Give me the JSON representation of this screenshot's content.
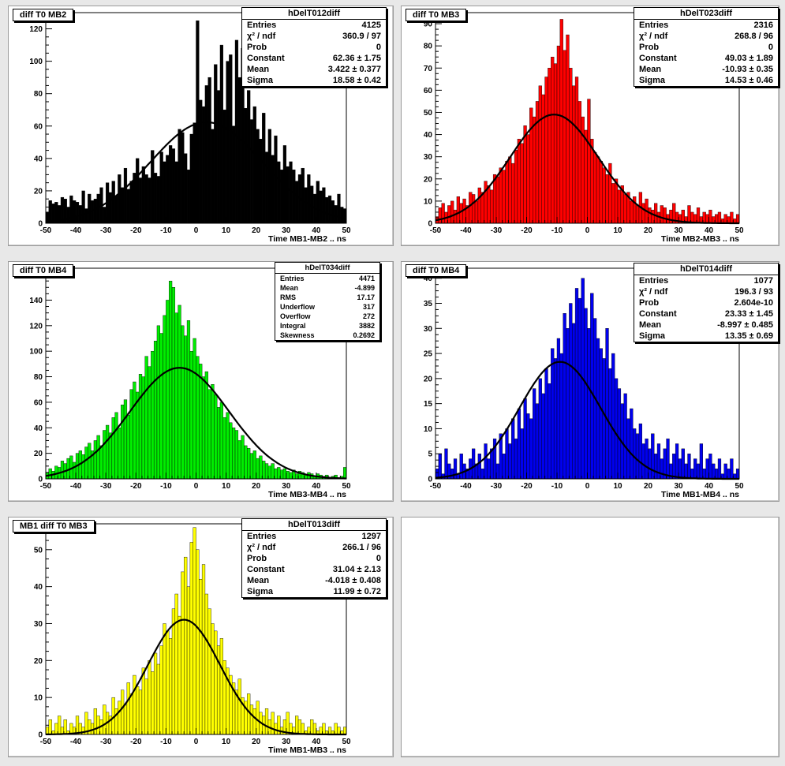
{
  "pads": [
    {
      "title": "diff T0 MB2",
      "fill": "#000000",
      "stats": {
        "name": "hDelT012diff",
        "rows": [
          [
            "Entries",
            "4125"
          ],
          [
            "χ² / ndf",
            "360.9 / 97"
          ],
          [
            "Prob",
            "0"
          ],
          [
            "Constant",
            "62.36 ± 1.75"
          ],
          [
            "Mean",
            "3.422 ± 0.377"
          ],
          [
            "Sigma",
            "18.58 ± 0.42"
          ]
        ]
      },
      "chart_data": {
        "type": "bar",
        "title": "diff T0 MB2",
        "xlabel": "Time MB1-MB2  ..  ns",
        "xlim": [
          -50,
          50
        ],
        "ylim": [
          0,
          130
        ],
        "yticks": [
          0,
          20,
          40,
          60,
          80,
          100,
          120
        ],
        "xticks": [
          -50,
          -40,
          -30,
          -20,
          -10,
          0,
          10,
          20,
          30,
          40,
          50
        ],
        "fit": {
          "constant": 62.36,
          "mean": 3.422,
          "sigma": 18.58
        },
        "bin_width": 1,
        "values": [
          7,
          14,
          12,
          13,
          11,
          16,
          15,
          10,
          17,
          14,
          13,
          11,
          20,
          9,
          18,
          14,
          15,
          18,
          22,
          10,
          25,
          19,
          26,
          17,
          30,
          22,
          34,
          21,
          26,
          31,
          40,
          28,
          35,
          30,
          28,
          45,
          31,
          29,
          44,
          38,
          42,
          48,
          46,
          38,
          58,
          56,
          43,
          33,
          55,
          62,
          125,
          76,
          72,
          85,
          90,
          58,
          98,
          82,
          110,
          70,
          100,
          104,
          60,
          113,
          90,
          108,
          71,
          82,
          64,
          72,
          58,
          52,
          68,
          44,
          58,
          42,
          54,
          38,
          33,
          48,
          35,
          38,
          33,
          26,
          30,
          34,
          22,
          30,
          23,
          18,
          26,
          20,
          22,
          16,
          17,
          14,
          11,
          18,
          10,
          9
        ]
      }
    },
    {
      "title": "diff T0 MB3",
      "fill": "#ff0000",
      "stats": {
        "name": "hDelT023diff",
        "rows": [
          [
            "Entries",
            "2316"
          ],
          [
            "χ² / ndf",
            "268.8 / 96"
          ],
          [
            "Prob",
            "0"
          ],
          [
            "Constant",
            "49.03 ± 1.89"
          ],
          [
            "Mean",
            "-10.93 ± 0.35"
          ],
          [
            "Sigma",
            "14.53 ± 0.46"
          ]
        ]
      },
      "chart_data": {
        "type": "bar",
        "title": "diff T0 MB3",
        "xlabel": "Time MB2-MB3  ..  ns",
        "xlim": [
          -50,
          50
        ],
        "ylim": [
          0,
          95
        ],
        "yticks": [
          0,
          10,
          20,
          30,
          40,
          50,
          60,
          70,
          80,
          90
        ],
        "xticks": [
          -50,
          -40,
          -30,
          -20,
          -10,
          0,
          10,
          20,
          30,
          40,
          50
        ],
        "fit": {
          "constant": 49.03,
          "mean": -10.93,
          "sigma": 14.53
        },
        "bin_width": 1,
        "values": [
          3,
          7,
          9,
          5,
          8,
          10,
          6,
          12,
          9,
          11,
          8,
          14,
          13,
          10,
          16,
          14,
          19,
          17,
          15,
          22,
          21,
          25,
          24,
          28,
          30,
          27,
          33,
          38,
          36,
          44,
          40,
          52,
          48,
          55,
          62,
          58,
          66,
          70,
          75,
          72,
          80,
          92,
          78,
          85,
          70,
          62,
          66,
          55,
          48,
          42,
          56,
          38,
          32,
          30,
          28,
          25,
          22,
          27,
          18,
          20,
          15,
          17,
          13,
          14,
          10,
          12,
          8,
          14,
          9,
          11,
          7,
          6,
          9,
          5,
          8,
          7,
          4,
          6,
          9,
          5,
          4,
          6,
          3,
          8,
          5,
          4,
          7,
          3,
          5,
          4,
          6,
          3,
          4,
          5,
          2,
          4,
          3,
          5,
          2,
          4
        ]
      }
    },
    {
      "title": "diff T0 MB4",
      "fill": "#00ee00",
      "stats": {
        "name": "hDelT034diff",
        "rows": [
          [
            "Entries",
            "4471"
          ],
          [
            "Mean",
            "-4.899"
          ],
          [
            "RMS",
            "17.17"
          ],
          [
            "Underflow",
            "317"
          ],
          [
            "Overflow",
            "272"
          ],
          [
            "Integral",
            "3882"
          ],
          [
            "Skewness",
            "0.2692"
          ]
        ]
      },
      "chart_data": {
        "type": "bar",
        "title": "diff T0 MB4",
        "xlabel": "Time MB3-MB4  ..  ns",
        "xlim": [
          -50,
          50
        ],
        "ylim": [
          0,
          165
        ],
        "yticks": [
          0,
          20,
          40,
          60,
          80,
          100,
          120,
          140,
          160
        ],
        "xticks": [
          -50,
          -40,
          -30,
          -20,
          -10,
          0,
          10,
          20,
          30,
          40,
          50
        ],
        "fit": {
          "constant": 87,
          "mean": -5.5,
          "sigma": 16.5
        },
        "bin_width": 1,
        "values": [
          5,
          8,
          6,
          10,
          9,
          14,
          12,
          16,
          18,
          13,
          20,
          22,
          19,
          25,
          28,
          22,
          30,
          34,
          26,
          38,
          42,
          36,
          48,
          52,
          40,
          58,
          62,
          50,
          70,
          76,
          68,
          82,
          80,
          96,
          88,
          100,
          108,
          120,
          114,
          128,
          140,
          155,
          150,
          130,
          136,
          120,
          112,
          124,
          100,
          110,
          96,
          90,
          80,
          84,
          70,
          74,
          66,
          56,
          60,
          48,
          52,
          44,
          40,
          38,
          30,
          34,
          26,
          24,
          20,
          22,
          16,
          18,
          14,
          12,
          10,
          12,
          8,
          9,
          7,
          8,
          6,
          5,
          7,
          4,
          6,
          5,
          3,
          5,
          4,
          2,
          4,
          3,
          2,
          3,
          1,
          2,
          3,
          1,
          2,
          9
        ]
      }
    },
    {
      "title": "diff T0 MB4",
      "fill": "#0000ee",
      "stats": {
        "name": "hDelT014diff",
        "rows": [
          [
            "Entries",
            "1077"
          ],
          [
            "χ² / ndf",
            "196.3 / 93"
          ],
          [
            "Prob",
            "2.604e-10"
          ],
          [
            "Constant",
            "23.33 ± 1.45"
          ],
          [
            "Mean",
            "-8.997 ± 0.485"
          ],
          [
            "Sigma",
            "13.35 ± 0.69"
          ]
        ]
      },
      "chart_data": {
        "type": "bar",
        "title": "diff T0 MB4",
        "xlabel": "Time MB1-MB4  ..  ns",
        "xlim": [
          -50,
          50
        ],
        "ylim": [
          0,
          42
        ],
        "yticks": [
          0,
          5,
          10,
          15,
          20,
          25,
          30,
          35,
          40
        ],
        "xticks": [
          -50,
          -40,
          -30,
          -20,
          -10,
          0,
          10,
          20,
          30,
          40,
          50
        ],
        "fit": {
          "constant": 23.33,
          "mean": -8.997,
          "sigma": 13.35
        },
        "bin_width": 1,
        "values": [
          2,
          5,
          1,
          6,
          3,
          2,
          4,
          1,
          5,
          3,
          2,
          4,
          6,
          3,
          5,
          2,
          7,
          4,
          6,
          8,
          3,
          9,
          5,
          10,
          7,
          12,
          8,
          14,
          10,
          16,
          13,
          12,
          18,
          15,
          20,
          17,
          22,
          19,
          26,
          24,
          28,
          25,
          33,
          30,
          35,
          31,
          38,
          36,
          40,
          34,
          30,
          37,
          32,
          28,
          26,
          24,
          30,
          22,
          25,
          20,
          18,
          15,
          17,
          12,
          14,
          10,
          9,
          11,
          7,
          8,
          6,
          9,
          5,
          7,
          4,
          6,
          8,
          3,
          5,
          7,
          4,
          6,
          3,
          5,
          2,
          4,
          3,
          7,
          2,
          4,
          5,
          3,
          2,
          4,
          1,
          3,
          2,
          4,
          1,
          2
        ]
      }
    },
    {
      "title": "MB1 diff T0 MB3",
      "fill": "#ffff00",
      "stats": {
        "name": "hDelT013diff",
        "rows": [
          [
            "Entries",
            "1297"
          ],
          [
            "χ² / ndf",
            "266.1 / 96"
          ],
          [
            "Prob",
            "0"
          ],
          [
            "Constant",
            "31.04 ± 2.13"
          ],
          [
            "Mean",
            "-4.018 ± 0.408"
          ],
          [
            "Sigma",
            "11.99 ± 0.72"
          ]
        ]
      },
      "chart_data": {
        "type": "bar",
        "title": "MB1 diff T0 MB3",
        "xlabel": "Time MB1-MB3  ..  ns",
        "xlim": [
          -50,
          50
        ],
        "ylim": [
          0,
          57
        ],
        "yticks": [
          0,
          10,
          20,
          30,
          40,
          50
        ],
        "xticks": [
          -50,
          -40,
          -30,
          -20,
          -10,
          0,
          10,
          20,
          30,
          40,
          50
        ],
        "fit": {
          "constant": 31.04,
          "mean": -4.018,
          "sigma": 11.99
        },
        "bin_width": 1,
        "values": [
          2,
          4,
          1,
          3,
          5,
          2,
          4,
          1,
          3,
          2,
          5,
          3,
          2,
          6,
          4,
          3,
          7,
          5,
          4,
          8,
          6,
          5,
          10,
          7,
          9,
          12,
          8,
          14,
          11,
          16,
          13,
          12,
          18,
          15,
          20,
          17,
          22,
          19,
          24,
          30,
          28,
          26,
          34,
          38,
          32,
          44,
          48,
          40,
          52,
          56,
          50,
          42,
          46,
          38,
          34,
          30,
          28,
          24,
          26,
          20,
          18,
          16,
          14,
          12,
          15,
          10,
          9,
          11,
          8,
          7,
          9,
          6,
          5,
          7,
          4,
          6,
          3,
          5,
          2,
          4,
          6,
          3,
          2,
          5,
          4,
          3,
          1,
          2,
          4,
          3,
          1,
          2,
          3,
          1,
          2,
          1,
          3,
          2,
          1,
          2
        ]
      }
    }
  ],
  "empty_pad": true
}
